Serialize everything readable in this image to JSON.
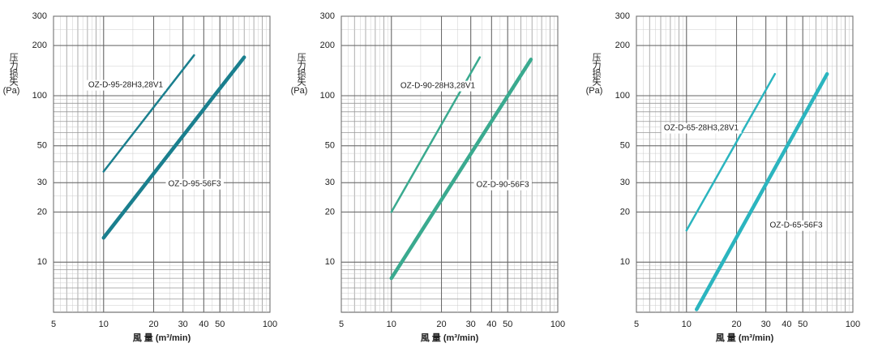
{
  "chart_data": [
    {
      "type": "line",
      "x_label": "風 量 (m³/min)",
      "y_label": "压力损失",
      "y_unit": "(Pa)",
      "xscale": "log",
      "yscale": "log",
      "grid": true,
      "xlim": [
        5,
        100
      ],
      "ylim": [
        5,
        300
      ],
      "xticks": [
        5,
        10,
        20,
        30,
        40,
        50,
        100
      ],
      "yticks": [
        10,
        20,
        30,
        50,
        100,
        200,
        300
      ],
      "series": [
        {
          "name": "OZ-D-95-28H3,28V1",
          "color": "#1a7f8e",
          "x": [
            10,
            35
          ],
          "values": [
            35,
            175
          ]
        },
        {
          "name": "OZ-D-95-56F3",
          "color": "#1a7f8e",
          "x": [
            10,
            70
          ],
          "values": [
            14,
            170
          ]
        }
      ]
    },
    {
      "type": "line",
      "x_label": "風 量 (m³/min)",
      "y_label": "压力损失",
      "y_unit": "(Pa)",
      "xscale": "log",
      "yscale": "log",
      "grid": true,
      "xlim": [
        5,
        100
      ],
      "ylim": [
        5,
        300
      ],
      "xticks": [
        5,
        10,
        20,
        30,
        40,
        50,
        100
      ],
      "yticks": [
        10,
        20,
        30,
        50,
        100,
        200,
        300
      ],
      "series": [
        {
          "name": "OZ-D-90-28H3,28V1",
          "color": "#3aaa8f",
          "x": [
            10,
            34
          ],
          "values": [
            20,
            170
          ]
        },
        {
          "name": "OZ-D-90-56F3",
          "color": "#3aaa8f",
          "x": [
            10,
            69
          ],
          "values": [
            8,
            165
          ]
        }
      ]
    },
    {
      "type": "line",
      "x_label": "風 量 (m³/min)",
      "y_label": "压力损失",
      "y_unit": "(Pa)",
      "xscale": "log",
      "yscale": "log",
      "grid": true,
      "xlim": [
        5,
        100
      ],
      "ylim": [
        5,
        300
      ],
      "xticks": [
        5,
        10,
        20,
        30,
        40,
        50,
        100
      ],
      "yticks": [
        10,
        20,
        30,
        50,
        100,
        200,
        300
      ],
      "series": [
        {
          "name": "OZ-D-65-28H3,28V1",
          "color": "#2bb5bf",
          "x": [
            10,
            34
          ],
          "values": [
            15.5,
            135
          ]
        },
        {
          "name": "OZ-D-65-56F3",
          "color": "#2bb5bf",
          "x": [
            11.5,
            70
          ],
          "values": [
            5.2,
            135
          ]
        }
      ]
    }
  ]
}
